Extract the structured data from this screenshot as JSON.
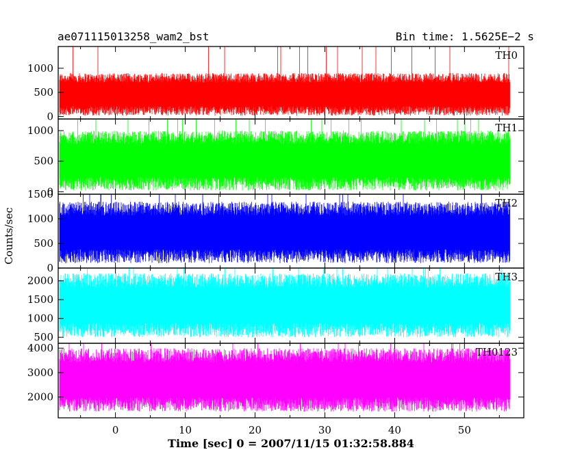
{
  "chart_data": {
    "type": "line",
    "title_left": "ae071115013258_wam2_bst",
    "title_right": "Bin time: 1.5625E−2 s",
    "xlabel": "Time [sec] 0 = 2007/11/15 01:32:58.884",
    "ylabel": "Counts/sec",
    "xlim": [
      -8.2,
      58.5
    ],
    "x_ticks": [
      0,
      10,
      20,
      30,
      40,
      50
    ],
    "data_x_range": [
      -8.0,
      56.5
    ],
    "bin_time": 0.015625,
    "panels": [
      {
        "name": "TH0",
        "color": "#ff0000",
        "ylim": [
          -50,
          1450
        ],
        "y_ticks": [
          0,
          500,
          1000
        ],
        "y_tick_labels": [
          "0",
          "500",
          "1000"
        ],
        "typical_range": [
          20,
          900
        ],
        "max": 1450
      },
      {
        "name": "TH1",
        "color": "#00ff00",
        "ylim": [
          -40,
          1190
        ],
        "y_ticks": [
          0,
          500,
          1000
        ],
        "y_tick_labels": [
          "0",
          "500",
          "1000"
        ],
        "typical_range": [
          20,
          1000
        ],
        "max": 1190
      },
      {
        "name": "TH2",
        "color": "#0000ff",
        "ylim": [
          0,
          1500
        ],
        "y_ticks": [
          0,
          500,
          1000,
          1500
        ],
        "y_tick_labels": [
          "0",
          "500",
          "1000",
          "1500"
        ],
        "typical_range": [
          100,
          1350
        ],
        "max": 1500
      },
      {
        "name": "TH3",
        "color": "#00ffff",
        "ylim": [
          340,
          2340
        ],
        "y_ticks": [
          500,
          1000,
          1500,
          2000
        ],
        "y_tick_labels": [
          "500",
          "1000",
          "1500",
          "2000"
        ],
        "typical_range": [
          500,
          2200
        ],
        "max": 2340
      },
      {
        "name": "TH0123",
        "color": "#ff00ff",
        "ylim": [
          1150,
          4200
        ],
        "y_ticks": [
          2000,
          3000,
          4000
        ],
        "y_tick_labels": [
          "2000",
          "3000",
          "4000"
        ],
        "typical_range": [
          1400,
          4000
        ],
        "max": 4200
      }
    ]
  }
}
